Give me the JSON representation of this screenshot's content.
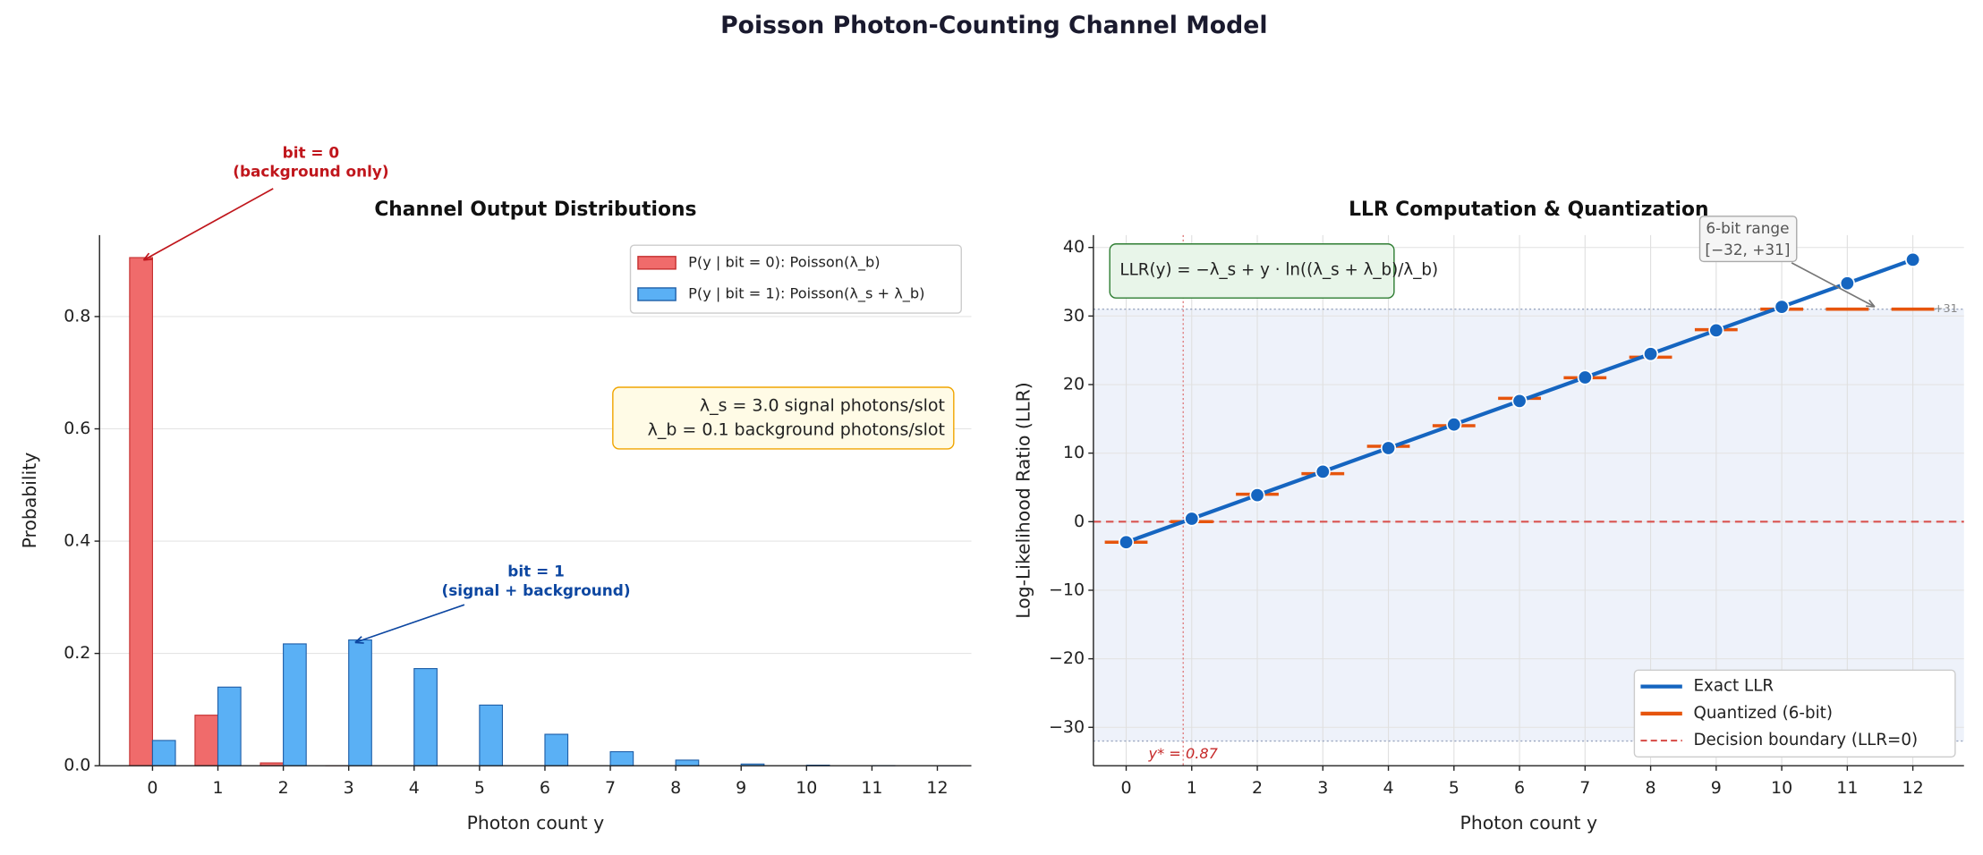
{
  "title": "Poisson Photon-Counting Channel Model",
  "chart_data": [
    {
      "type": "bar",
      "title": "Channel Output Distributions",
      "x_label": "Photon count y",
      "y_label": "Probability",
      "categories": [
        "0",
        "1",
        "2",
        "3",
        "4",
        "5",
        "6",
        "7",
        "8",
        "9",
        "10",
        "11",
        "12"
      ],
      "series": [
        {
          "name": "P(y | bit = 0): Poisson(λ_b)",
          "color": "#f06b6b",
          "edge": "#c53030",
          "values": [
            0.905,
            0.09,
            0.005,
            0.0002,
            0,
            0,
            0,
            0,
            0,
            0,
            0,
            0,
            0
          ]
        },
        {
          "name": "P(y | bit = 1): Poisson(λ_s + λ_b)",
          "color": "#5ab0f5",
          "edge": "#1f5fa8",
          "values": [
            0.045,
            0.14,
            0.217,
            0.224,
            0.173,
            0.108,
            0.056,
            0.025,
            0.01,
            0.003,
            0.001,
            0.0003,
            0.0001
          ]
        }
      ],
      "ylim": [
        0,
        0.945
      ],
      "yticks": [
        {
          "value": 0,
          "label": "0.0"
        },
        0.2,
        0.4,
        0.6,
        0.8
      ],
      "legend": "upper right",
      "grid": true,
      "annotations": [
        {
          "text": [
            "bit = 0",
            "(background only)"
          ],
          "color": "#c0161c"
        },
        {
          "text": [
            "bit = 1",
            "(signal + background)"
          ],
          "color": "#0d47a1"
        }
      ],
      "info_box": [
        "λ_s = 3.0 signal photons/slot",
        "λ_b = 0.1 background photons/slot"
      ]
    },
    {
      "type": "line",
      "title": "LLR Computation & Quantization",
      "x_label": "Photon count y",
      "y_label": "Log-Likelihood Ratio (LLR)",
      "x": [
        0,
        1,
        2,
        3,
        4,
        5,
        6,
        7,
        8,
        9,
        10,
        11,
        12
      ],
      "series": [
        {
          "name": "Exact LLR",
          "color": "#1565c0",
          "values": [
            -3.0,
            0.43,
            3.87,
            7.3,
            10.74,
            14.17,
            17.6,
            21.04,
            24.47,
            27.91,
            31.34,
            34.77,
            38.21
          ]
        },
        {
          "name": "Quantized (6-bit)",
          "color": "#e6550d",
          "values": [
            -3,
            0,
            4,
            7,
            11,
            14,
            18,
            21,
            24,
            28,
            31,
            31,
            31
          ]
        }
      ],
      "decision_boundary": {
        "name": "Decision boundary (LLR=0)",
        "color": "#d9534f",
        "value": 0
      },
      "quant_range": {
        "lim": [
          -32,
          31
        ],
        "max_label": "+31",
        "annotation": [
          "6-bit range",
          "[−32, +31]"
        ]
      },
      "threshold": {
        "value": 0.87,
        "label": "y* = 0.87"
      },
      "formula": "LLR(y) = −λ_s + y · ln((λ_s + λ_b)/λ_b)",
      "xlim": [
        -0.5,
        12.78
      ],
      "xticks": [
        0,
        1,
        2,
        3,
        4,
        5,
        6,
        7,
        8,
        9,
        10,
        11,
        12
      ],
      "ylim": [
        -35.6,
        41.8
      ],
      "yticks": [
        {
          "value": -30,
          "label": "−30"
        },
        {
          "value": -20,
          "label": "−20"
        },
        {
          "value": -10,
          "label": "−10"
        },
        0,
        10,
        20,
        30,
        40
      ],
      "legend": "lower right",
      "grid": true
    }
  ]
}
